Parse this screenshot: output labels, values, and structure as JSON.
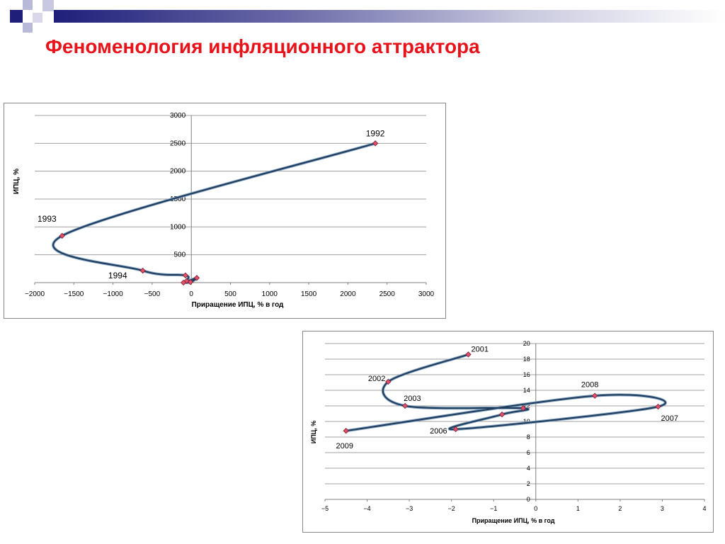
{
  "slide": {
    "title": "Феноменология инфляционного аттрактора",
    "accent_color": "#e8121a",
    "band_color_left": "#1f1f7a",
    "band_color_right": "#ffffff"
  },
  "chart_data": [
    {
      "type": "line",
      "smooth": true,
      "xlabel": "Приращение ИПЦ, % в год",
      "ylabel": "ИПЦ, %",
      "xlim": [
        -2000,
        3000
      ],
      "ylim": [
        0,
        3000
      ],
      "xticks": [
        -2000,
        -1500,
        -1000,
        -500,
        0,
        500,
        1000,
        1500,
        2000,
        2500,
        3000
      ],
      "yticks": [
        500,
        1000,
        1500,
        2000,
        2500,
        3000
      ],
      "grid": true,
      "points": [
        {
          "x": 2350,
          "y": 2500,
          "label": "1992"
        },
        {
          "x": -1650,
          "y": 840,
          "label": "1993"
        },
        {
          "x": -620,
          "y": 215,
          "label": "1994"
        },
        {
          "x": -75,
          "y": 130,
          "label": ""
        },
        {
          "x": -60,
          "y": 30,
          "label": ""
        },
        {
          "x": 70,
          "y": 85,
          "label": ""
        },
        {
          "x": -10,
          "y": 10,
          "label": ""
        },
        {
          "x": -100,
          "y": 0,
          "label": ""
        }
      ],
      "line_color": "#1f3b5a",
      "marker_color": "#e0506a"
    },
    {
      "type": "line",
      "smooth": true,
      "xlabel": "Приращение ИПЦ, % в год",
      "ylabel": "ИПЦ, %",
      "xlim": [
        -5,
        4
      ],
      "ylim": [
        0,
        20
      ],
      "xticks": [
        -5,
        -4,
        -3,
        -2,
        -1,
        0,
        1,
        2,
        3,
        4
      ],
      "yticks": [
        0,
        2,
        4,
        6,
        8,
        10,
        12,
        14,
        16,
        18,
        20
      ],
      "grid": true,
      "points": [
        {
          "x": -1.6,
          "y": 18.6,
          "label": "2001"
        },
        {
          "x": -3.5,
          "y": 15.1,
          "label": "2002"
        },
        {
          "x": -3.1,
          "y": 12.0,
          "label": "2003"
        },
        {
          "x": -0.3,
          "y": 11.7,
          "label": ""
        },
        {
          "x": -0.8,
          "y": 10.9,
          "label": ""
        },
        {
          "x": -1.9,
          "y": 9.0,
          "label": "2006"
        },
        {
          "x": 2.9,
          "y": 11.9,
          "label": "2007"
        },
        {
          "x": 1.4,
          "y": 13.3,
          "label": "2008"
        },
        {
          "x": -4.5,
          "y": 8.8,
          "label": "2009"
        }
      ],
      "line_color": "#1f3b5a",
      "marker_color": "#e0506a"
    }
  ]
}
